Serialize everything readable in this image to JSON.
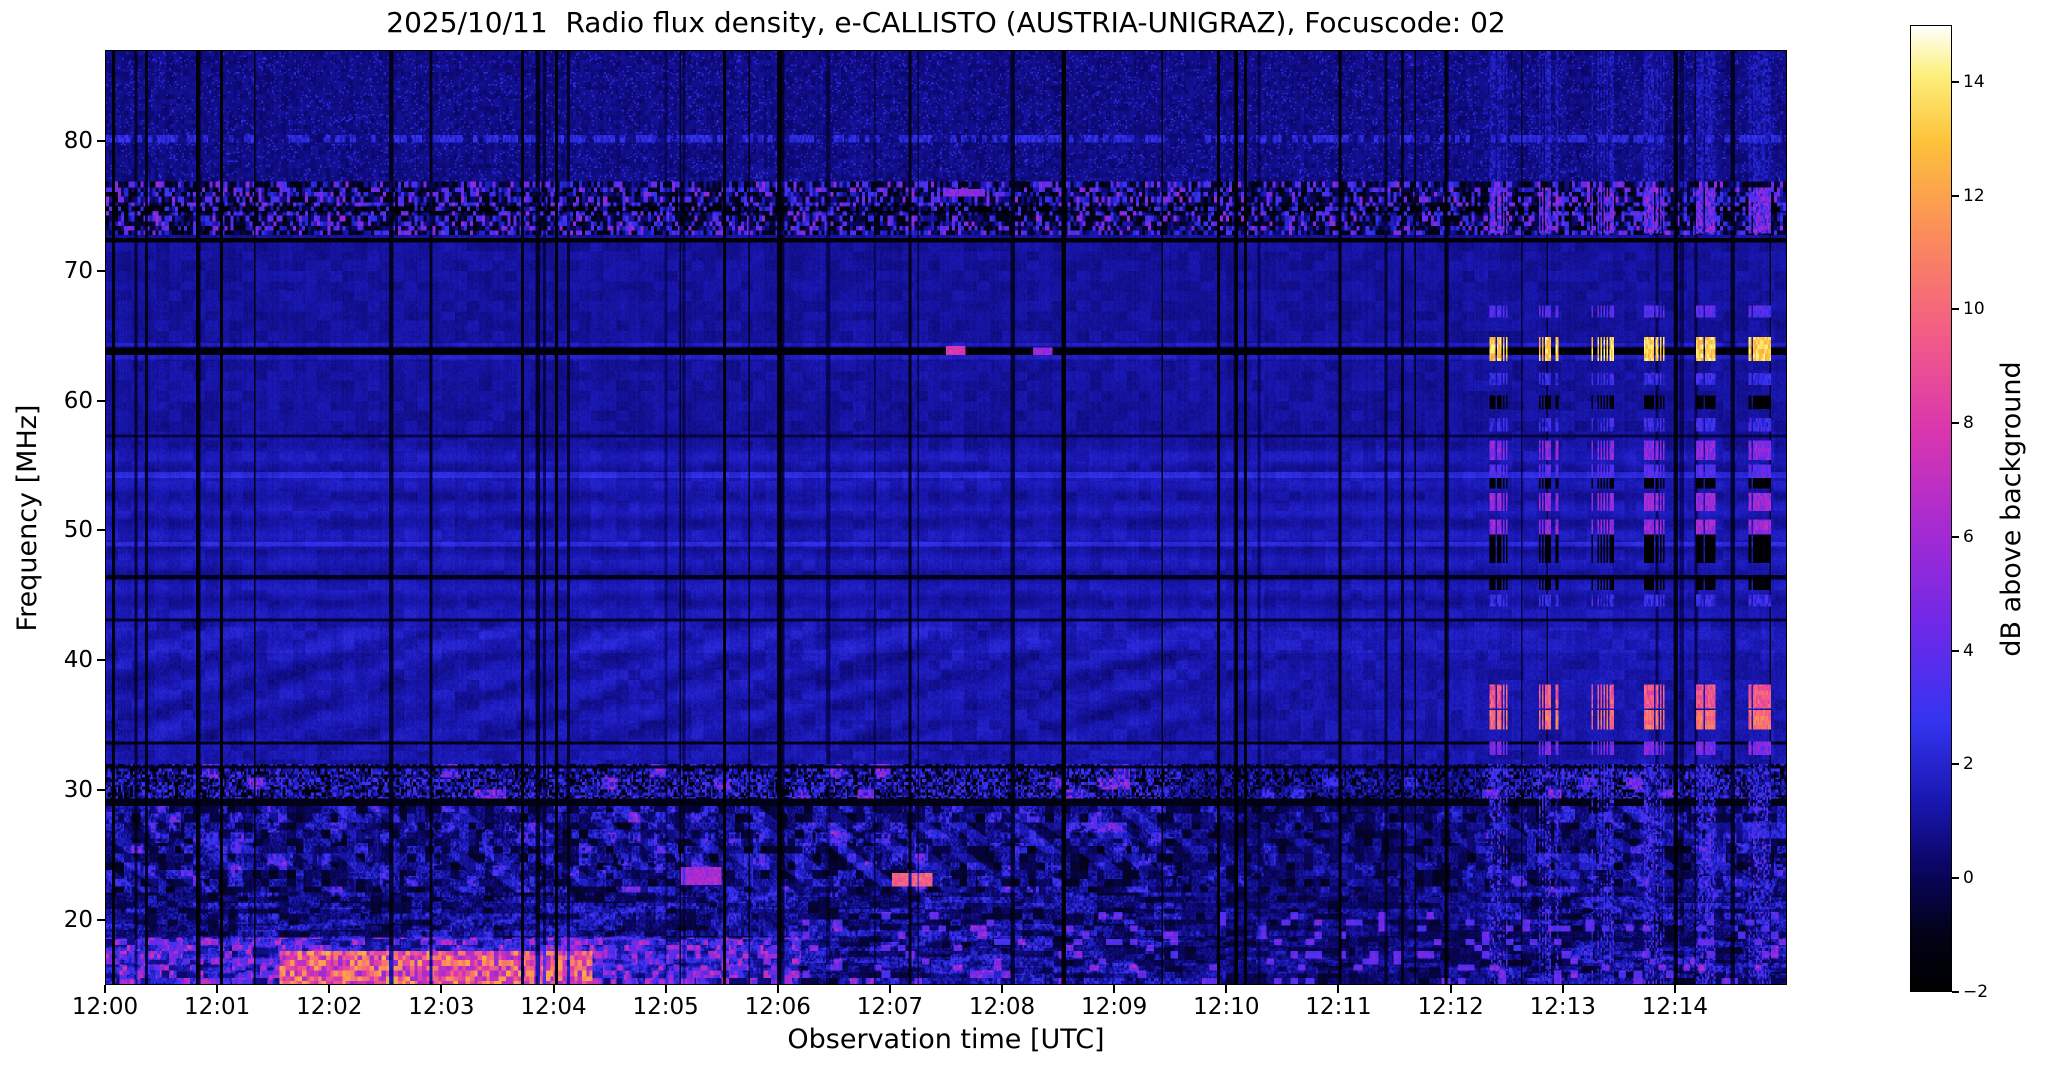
{
  "window": {
    "background": "#ffffff"
  },
  "chart_data": {
    "type": "heatmap",
    "subtype": "radio-spectrogram",
    "title": "2025/10/11  Radio flux density, e-CALLISTO (AUSTRIA-UNIGRAZ), Focuscode: 02",
    "xlabel": "Observation time [UTC]",
    "ylabel": "Frequency [MHz]",
    "x_ticks": [
      "12:00",
      "12:01",
      "12:02",
      "12:03",
      "12:04",
      "12:05",
      "12:06",
      "12:07",
      "12:08",
      "12:09",
      "12:10",
      "12:11",
      "12:12",
      "12:13",
      "12:14"
    ],
    "x_range_minutes": [
      0,
      15
    ],
    "y_ticks": [
      20,
      30,
      40,
      50,
      60,
      70,
      80
    ],
    "y_range_mhz": [
      15,
      87
    ],
    "grid": false,
    "colorbar": {
      "label": "dB above background",
      "ticks": [
        -2,
        0,
        2,
        4,
        6,
        8,
        10,
        12,
        14
      ],
      "range": [
        -2,
        15
      ],
      "colormap_stops": [
        {
          "pos": 0.0,
          "color": "#000000"
        },
        {
          "pos": 0.06,
          "color": "#020218"
        },
        {
          "pos": 0.13,
          "color": "#0a0666"
        },
        {
          "pos": 0.2,
          "color": "#1a18b4"
        },
        {
          "pos": 0.28,
          "color": "#3434f0"
        },
        {
          "pos": 0.38,
          "color": "#7028e8"
        },
        {
          "pos": 0.48,
          "color": "#a62ad2"
        },
        {
          "pos": 0.58,
          "color": "#d936ae"
        },
        {
          "pos": 0.68,
          "color": "#f25c86"
        },
        {
          "pos": 0.78,
          "color": "#fb8a5c"
        },
        {
          "pos": 0.88,
          "color": "#fdc23a"
        },
        {
          "pos": 0.95,
          "color": "#fcf07c"
        },
        {
          "pos": 1.0,
          "color": "#ffffff"
        }
      ]
    },
    "features": [
      "Mottled interference band 73-76.5 MHz persisting across the whole interval",
      "Strong dark instrumental line at 63.8 MHz with bright blue edges; fainter dark lines near 72.3, 46.4, 33.6 MHz",
      "Horizontal striping between 43 and 57 MHz with brighter lines near 49 and 54.3 MHz",
      "Faint wavy ionospheric ripples 34-42 MHz before ~12:09",
      "Broadband terrestrial interference below 32 MHz, strongest 15-18 MHz from ~12:01:40 to ~12:04:20 (up to ~13 dB)",
      "Quasi-periodic striped burst groups after ~12:12:20 repeating every ~28 s, saturating (~14-15 dB) at 64 MHz with lanes near 56, 52, 50, 37 and 35.5 MHz",
      "Many narrow dark vertical data gaps throughout the record"
    ],
    "render_hints": {
      "bright_edge_line": 63.85,
      "hot_band": {
        "t0": 1.55,
        "t1": 4.35,
        "f_max": 18.6,
        "peak": 13
      },
      "dark_h_lines": [
        {
          "f": 72.35,
          "w": 0.2,
          "level": -1.8
        },
        {
          "f": 63.85,
          "w": 0.32,
          "level": -1.9
        },
        {
          "f": 57.3,
          "w": 0.1,
          "level": -0.5
        },
        {
          "f": 46.35,
          "w": 0.16,
          "level": -1.2
        },
        {
          "f": 43.1,
          "w": 0.12,
          "level": -0.8
        },
        {
          "f": 33.6,
          "w": 0.15,
          "level": -1.2
        },
        {
          "f": 31.75,
          "w": 0.12,
          "level": -1.0
        },
        {
          "f": 29.0,
          "w": 0.3,
          "level": -1.3
        }
      ],
      "blobs": [
        {
          "t0": 7.02,
          "t1": 7.38,
          "f0": 22.5,
          "f1": 23.5,
          "level": 9.0
        },
        {
          "t0": 5.12,
          "t1": 5.5,
          "f0": 22.6,
          "f1": 24.0,
          "level": 5.5
        },
        {
          "t0": 7.5,
          "t1": 7.68,
          "f0": 63.5,
          "f1": 64.2,
          "level": 7.0
        },
        {
          "t0": 7.52,
          "t1": 7.85,
          "f0": 75.8,
          "f1": 76.4,
          "level": 4.5
        },
        {
          "t0": 8.28,
          "t1": 8.45,
          "f0": 63.5,
          "f1": 64.15,
          "level": 5.0
        }
      ],
      "strong_gaps": [
        0.07,
        1.03,
        4.02,
        5.52,
        6.02,
        8.55,
        9.93,
        10.17,
        11.02,
        11.97
      ],
      "random_gap_count": 42,
      "burst": {
        "start": 12.32,
        "period": 0.47,
        "width": 0.2,
        "rows": [
          {
            "f": 64.0,
            "w": 0.9,
            "amp": 14.5
          },
          {
            "f": 66.9,
            "w": 0.5,
            "amp": 5.0
          },
          {
            "f": 61.7,
            "w": 0.5,
            "amp": 4.0
          },
          {
            "f": 58.2,
            "w": 0.5,
            "amp": 4.0
          },
          {
            "f": 56.2,
            "w": 0.7,
            "amp": 6.5
          },
          {
            "f": 54.6,
            "w": 0.5,
            "amp": 5.0
          },
          {
            "f": 52.2,
            "w": 0.7,
            "amp": 7.0
          },
          {
            "f": 50.2,
            "w": 0.6,
            "amp": 7.0
          },
          {
            "f": 44.6,
            "w": 0.5,
            "amp": 4.0
          },
          {
            "f": 37.2,
            "w": 0.9,
            "amp": 10.5
          },
          {
            "f": 35.4,
            "w": 0.7,
            "amp": 11.5
          },
          {
            "f": 33.2,
            "w": 0.5,
            "amp": 6.0
          }
        ],
        "dark_rows": [
          {
            "f": 48.6,
            "w": 1.1
          },
          {
            "f": 53.7,
            "w": 0.4
          },
          {
            "f": 46.0,
            "w": 0.6
          },
          {
            "f": 59.9,
            "w": 0.5
          }
        ]
      }
    }
  }
}
